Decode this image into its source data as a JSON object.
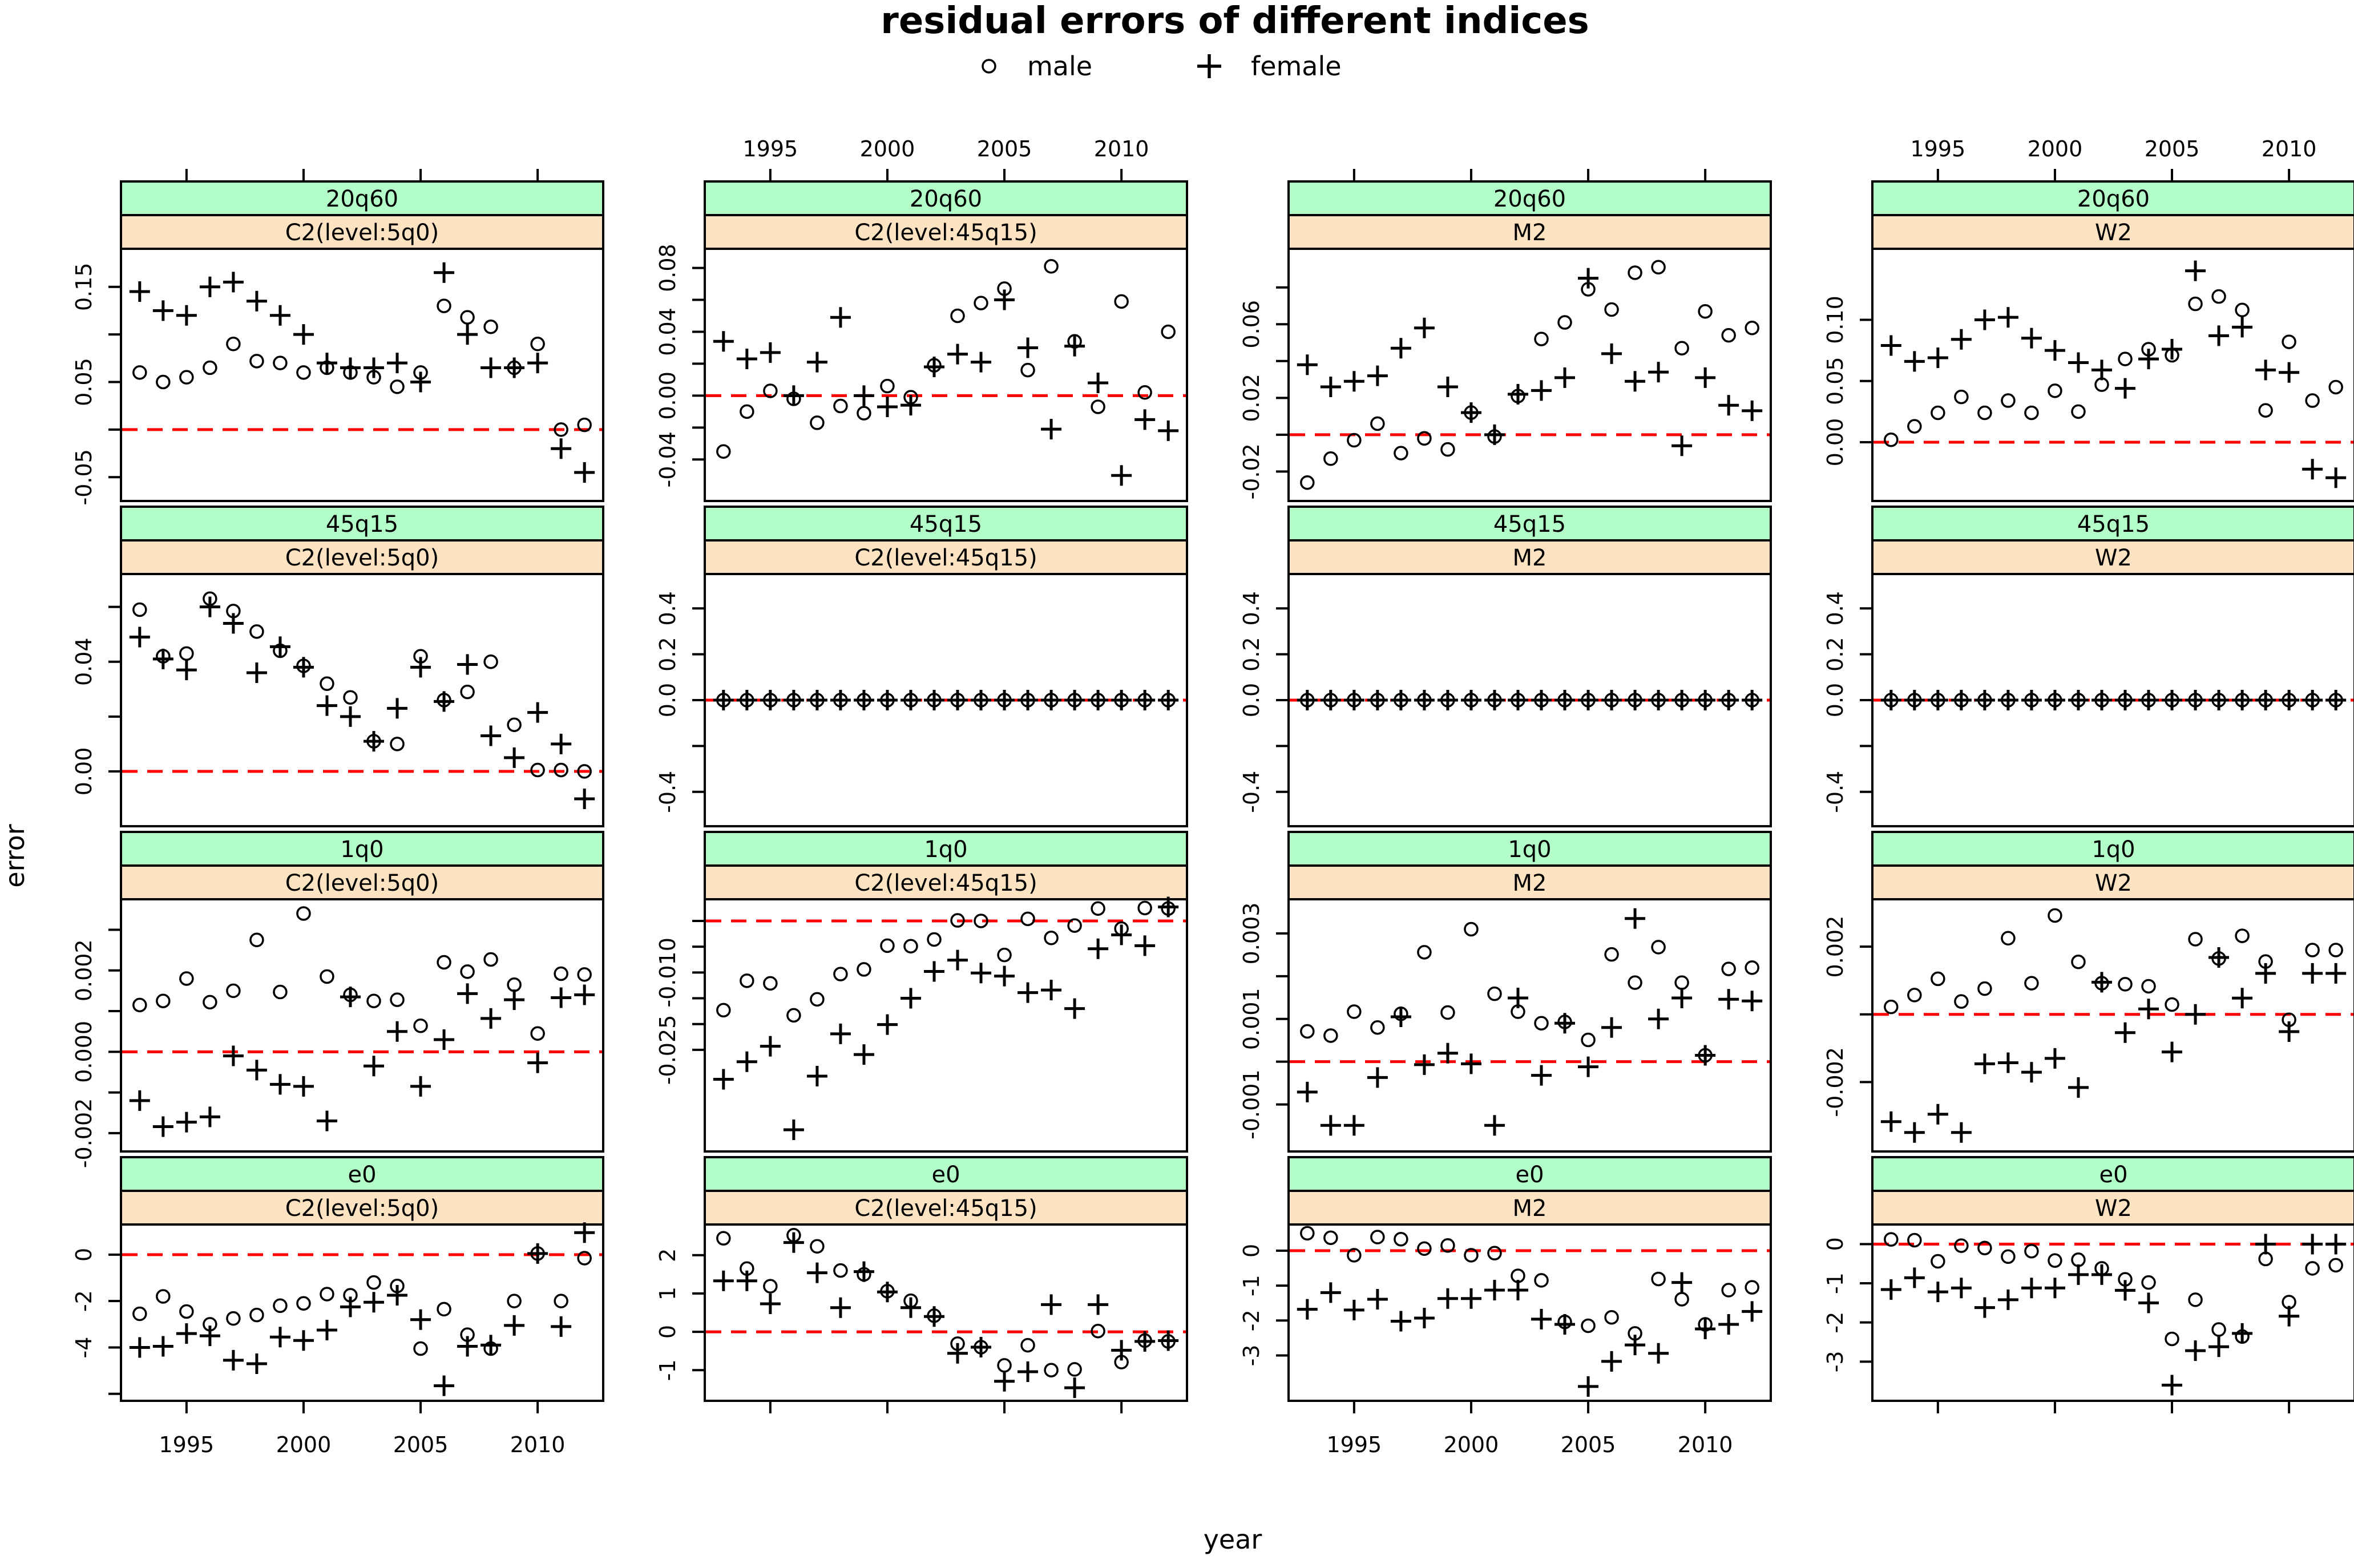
{
  "title": "residual errors of different indices",
  "legend": {
    "male_label": "male",
    "female_label": "female"
  },
  "axis": {
    "xlabel": "year",
    "ylabel": "error"
  },
  "colors": {
    "row_strip": "#b2fdc8",
    "col_strip": "#fee3c3",
    "zero_line": "#ff0000",
    "point": "#000000",
    "frame": "#000000"
  },
  "chart_data": {
    "type": "scatter",
    "description": "lattice of residual errors by index (rows) and model (columns), male=open circle, female=plus, red dashed zero line",
    "years": [
      1993,
      1994,
      1995,
      1996,
      1997,
      1998,
      1999,
      2000,
      2001,
      2002,
      2003,
      2004,
      2005,
      2006,
      2007,
      2008,
      2009,
      2010,
      2011,
      2012
    ],
    "xlim": [
      1992.2,
      2012.8
    ],
    "x_ticks": [
      1995,
      2000,
      2005,
      2010
    ],
    "rows": [
      "20q60",
      "45q15",
      "1q0",
      "e0"
    ],
    "cols": [
      "C2(level:5q0)",
      "C2(level:45q15)",
      "M2",
      "W2"
    ],
    "panels": [
      {
        "row": "20q60",
        "col": "C2(level:5q0)",
        "ylim": [
          -0.075,
          0.19
        ],
        "yticks": [
          0.15,
          0.1,
          0.05,
          0.0,
          -0.05
        ],
        "ylabels": [
          "0.15",
          "",
          "0.05",
          "",
          "-0.05"
        ],
        "male": [
          0.06,
          0.05,
          0.055,
          0.065,
          0.09,
          0.072,
          0.07,
          0.06,
          0.065,
          0.06,
          0.055,
          0.045,
          0.06,
          0.13,
          0.118,
          0.108,
          0.065,
          0.09,
          0.0,
          0.005
        ],
        "female": [
          0.145,
          0.125,
          0.12,
          0.15,
          0.155,
          0.135,
          0.12,
          0.1,
          0.07,
          0.065,
          0.065,
          0.07,
          0.05,
          0.165,
          0.1,
          0.065,
          0.065,
          0.07,
          -0.02,
          -0.045
        ]
      },
      {
        "row": "20q60",
        "col": "C2(level:45q15)",
        "ylim": [
          -0.066,
          0.092
        ],
        "yticks": [
          0.08,
          0.06,
          0.04,
          0.02,
          0.0,
          -0.02,
          -0.04
        ],
        "ylabels": [
          "0.08",
          "",
          "0.04",
          "",
          "0.00",
          "",
          "-0.04"
        ],
        "male": [
          -0.035,
          -0.01,
          0.003,
          -0.002,
          -0.017,
          -0.0065,
          -0.011,
          0.006,
          -0.001,
          0.019,
          0.05,
          0.058,
          0.067,
          0.016,
          0.081,
          0.034,
          -0.007,
          0.059,
          0.002,
          0.04
        ],
        "female": [
          0.034,
          0.023,
          0.027,
          0.0,
          0.021,
          0.049,
          0.0,
          -0.007,
          -0.006,
          0.018,
          0.026,
          0.021,
          0.06,
          0.03,
          -0.021,
          0.031,
          0.008,
          -0.05,
          -0.015,
          -0.022
        ]
      },
      {
        "row": "20q60",
        "col": "M2",
        "ylim": [
          -0.036,
          0.101
        ],
        "yticks": [
          0.08,
          0.06,
          0.04,
          0.02,
          0.0,
          -0.02
        ],
        "ylabels": [
          "",
          "0.06",
          "",
          "0.02",
          "",
          "-0.02"
        ],
        "male": [
          -0.026,
          -0.013,
          -0.003,
          0.006,
          -0.01,
          -0.002,
          -0.008,
          0.012,
          -0.001,
          0.021,
          0.052,
          0.061,
          0.079,
          0.068,
          0.088,
          0.091,
          0.047,
          0.067,
          0.054,
          0.058
        ],
        "female": [
          0.038,
          0.026,
          0.029,
          0.032,
          0.047,
          0.058,
          0.026,
          0.012,
          0.0,
          0.022,
          0.024,
          0.031,
          0.085,
          0.044,
          0.029,
          0.034,
          -0.006,
          0.031,
          0.016,
          0.013
        ]
      },
      {
        "row": "20q60",
        "col": "W2",
        "ylim": [
          -0.048,
          0.158
        ],
        "yticks": [
          0.1,
          0.05,
          0.0
        ],
        "ylabels": [
          "0.10",
          "0.05",
          "0.00"
        ],
        "male": [
          0.002,
          0.013,
          0.024,
          0.037,
          0.024,
          0.034,
          0.024,
          0.042,
          0.025,
          0.047,
          0.068,
          0.076,
          0.071,
          0.113,
          0.119,
          0.108,
          0.026,
          0.082,
          0.034,
          0.045
        ],
        "female": [
          0.079,
          0.066,
          0.069,
          0.084,
          0.1,
          0.102,
          0.085,
          0.075,
          0.065,
          0.059,
          0.044,
          0.068,
          0.076,
          0.14,
          0.087,
          0.094,
          0.059,
          0.057,
          -0.022,
          -0.029
        ]
      },
      {
        "row": "45q15",
        "col": "C2(level:5q0)",
        "ylim": [
          -0.02,
          0.072
        ],
        "yticks": [
          0.06,
          0.04,
          0.02,
          0.0
        ],
        "ylabels": [
          "",
          "0.04",
          "",
          "0.00"
        ],
        "male": [
          0.059,
          0.042,
          0.043,
          0.063,
          0.0585,
          0.051,
          0.044,
          0.0385,
          0.032,
          0.027,
          0.011,
          0.01,
          0.042,
          0.026,
          0.029,
          0.04,
          0.017,
          0.0005,
          0.0005,
          0.0
        ],
        "female": [
          0.049,
          0.041,
          0.037,
          0.06,
          0.054,
          0.036,
          0.0455,
          0.038,
          0.024,
          0.02,
          0.011,
          0.023,
          0.038,
          0.0255,
          0.039,
          0.013,
          0.005,
          0.0215,
          0.01,
          -0.01
        ]
      },
      {
        "row": "45q15",
        "col": "C2(level:45q15)",
        "ylim": [
          -0.55,
          0.55
        ],
        "yticks": [
          0.4,
          0.2,
          0.0,
          -0.2,
          -0.4
        ],
        "ylabels": [
          "0.4",
          "0.2",
          "0.0",
          "",
          "-0.4"
        ],
        "male": [
          0,
          0,
          0,
          0,
          0,
          0,
          0,
          0,
          0,
          0,
          0,
          0,
          0,
          0,
          0,
          0,
          0,
          0,
          0,
          0
        ],
        "female": [
          0,
          0,
          0,
          0,
          0,
          0,
          0,
          0,
          0,
          0,
          0,
          0,
          0,
          0,
          0,
          0,
          0,
          0,
          0,
          0
        ]
      },
      {
        "row": "45q15",
        "col": "M2",
        "ylim": [
          -0.55,
          0.55
        ],
        "yticks": [
          0.4,
          0.2,
          0.0,
          -0.2,
          -0.4
        ],
        "ylabels": [
          "0.4",
          "0.2",
          "0.0",
          "",
          "-0.4"
        ],
        "male": [
          0,
          0,
          0,
          0,
          0,
          0,
          0,
          0,
          0,
          0,
          0,
          0,
          0,
          0,
          0,
          0,
          0,
          0,
          0,
          0
        ],
        "female": [
          0,
          0,
          0,
          0,
          0,
          0,
          0,
          0,
          0,
          0,
          0,
          0,
          0,
          0,
          0,
          0,
          0,
          0,
          0,
          0
        ]
      },
      {
        "row": "45q15",
        "col": "W2",
        "ylim": [
          -0.55,
          0.55
        ],
        "yticks": [
          0.4,
          0.2,
          0.0,
          -0.2,
          -0.4
        ],
        "ylabels": [
          "0.4",
          "0.2",
          "0.0",
          "",
          "-0.4"
        ],
        "male": [
          0,
          0,
          0,
          0,
          0,
          0,
          0,
          0,
          0,
          0,
          0,
          0,
          0,
          0,
          0,
          0,
          0,
          0,
          0,
          0
        ],
        "female": [
          0,
          0,
          0,
          0,
          0,
          0,
          0,
          0,
          0,
          0,
          0,
          0,
          0,
          0,
          0,
          0,
          0,
          0,
          0,
          0
        ]
      },
      {
        "row": "1q0",
        "col": "C2(level:5q0)",
        "ylim": [
          -0.00245,
          0.00375
        ],
        "yticks": [
          0.003,
          0.002,
          0.001,
          0.0,
          -0.001,
          -0.002
        ],
        "ylabels": [
          "",
          "0.002",
          "",
          "0.000",
          "",
          "-0.002"
        ],
        "male": [
          0.00115,
          0.00125,
          0.0018,
          0.00122,
          0.0015,
          0.00275,
          0.00147,
          0.0034,
          0.00185,
          0.0014,
          0.00125,
          0.00128,
          0.00064,
          0.0022,
          0.00197,
          0.00227,
          0.00165,
          0.00045,
          0.00192,
          0.0019
        ],
        "female": [
          -0.0012,
          -0.00184,
          -0.00173,
          -0.0016,
          -0.0001,
          -0.00045,
          -0.0008,
          -0.00085,
          -0.0017,
          0.00135,
          -0.00035,
          0.0005,
          -0.00085,
          0.0003,
          0.00143,
          0.00082,
          0.00128,
          -0.00027,
          0.00133,
          0.0014
        ]
      },
      {
        "row": "1q0",
        "col": "C2(level:45q15)",
        "ylim": [
          -0.0447,
          0.0042
        ],
        "yticks": [
          0.0,
          -0.005,
          -0.01,
          -0.015,
          -0.02,
          -0.025
        ],
        "ylabels": [
          "",
          "",
          "-0.010",
          "",
          "",
          "-0.025"
        ],
        "male": [
          -0.0173,
          -0.0116,
          -0.0121,
          -0.0183,
          -0.0152,
          -0.0103,
          -0.0094,
          -0.0048,
          -0.0049,
          -0.0036,
          0.0001,
          0.0,
          -0.0066,
          0.0004,
          -0.0033,
          -0.0009,
          0.0024,
          -0.0015,
          0.0025,
          0.0024
        ],
        "female": [
          -0.0307,
          -0.0273,
          -0.0243,
          -0.0405,
          -0.0301,
          -0.0219,
          -0.0259,
          -0.0201,
          -0.015,
          -0.0098,
          -0.0076,
          -0.0101,
          -0.0107,
          -0.0139,
          -0.0134,
          -0.017,
          -0.0054,
          -0.0027,
          -0.0048,
          0.0027
        ]
      },
      {
        "row": "1q0",
        "col": "M2",
        "ylim": [
          -0.0021,
          0.0038
        ],
        "yticks": [
          0.003,
          0.002,
          0.001,
          0.0,
          -0.001
        ],
        "ylabels": [
          "0.003",
          "",
          "0.001",
          "",
          "-0.001"
        ],
        "male": [
          0.00071,
          0.00061,
          0.00117,
          0.0008,
          0.00112,
          0.00256,
          0.00115,
          0.0031,
          0.00159,
          0.00117,
          0.0009,
          0.00093,
          0.00051,
          0.00251,
          0.00185,
          0.00268,
          0.00185,
          0.00015,
          0.00217,
          0.0022
        ],
        "female": [
          -0.00071,
          -0.00149,
          -0.00149,
          -0.00037,
          0.00105,
          -7e-05,
          0.0002,
          -5e-05,
          -0.00149,
          0.00149,
          -0.00032,
          0.0009,
          -0.00012,
          0.0008,
          0.00335,
          0.001,
          0.00149,
          0.00015,
          0.00146,
          0.00142
        ]
      },
      {
        "row": "1q0",
        "col": "W2",
        "ylim": [
          -0.00405,
          0.0034
        ],
        "yticks": [
          0.002,
          0.0,
          -0.002
        ],
        "ylabels": [
          "0.002",
          "",
          "-0.002"
        ],
        "male": [
          0.00022,
          0.00057,
          0.00105,
          0.00038,
          0.00076,
          0.00225,
          0.00092,
          0.00292,
          0.00155,
          0.00092,
          0.00089,
          0.00083,
          0.00029,
          0.00222,
          0.00165,
          0.00232,
          0.00156,
          -0.00016,
          0.0019,
          0.0019
        ],
        "female": [
          -0.00317,
          -0.00349,
          -0.00295,
          -0.00349,
          -0.00146,
          -0.00143,
          -0.00171,
          -0.0013,
          -0.00216,
          0.00095,
          -0.00054,
          0.00016,
          -0.00111,
          0.0,
          0.00168,
          0.00048,
          0.00121,
          -0.00051,
          0.00121,
          0.00121
        ]
      },
      {
        "row": "e0",
        "col": "C2(level:5q0)",
        "ylim": [
          -6.3,
          1.3
        ],
        "yticks": [
          0,
          -2,
          -4,
          -6
        ],
        "ylabels": [
          "0",
          "-2",
          "-4",
          ""
        ],
        "male": [
          -2.55,
          -1.8,
          -2.45,
          -3.0,
          -2.75,
          -2.6,
          -2.2,
          -2.1,
          -1.7,
          -1.75,
          -1.2,
          -1.35,
          -4.05,
          -2.35,
          -3.45,
          -4.05,
          -2.0,
          0.05,
          -2.0,
          -0.15
        ],
        "female": [
          -4.0,
          -3.95,
          -3.4,
          -3.5,
          -4.55,
          -4.7,
          -3.55,
          -3.7,
          -3.25,
          -2.25,
          -2.05,
          -1.75,
          -2.8,
          -5.65,
          -3.95,
          -3.9,
          -3.05,
          0.05,
          -3.1,
          0.95
        ]
      },
      {
        "row": "e0",
        "col": "C2(level:45q15)",
        "ylim": [
          -1.8,
          2.8
        ],
        "yticks": [
          2,
          1,
          0,
          -1
        ],
        "ylabels": [
          "2",
          "1",
          "0",
          "-1"
        ],
        "male": [
          2.44,
          1.65,
          1.19,
          2.52,
          2.23,
          1.6,
          1.5,
          1.06,
          0.81,
          0.42,
          -0.31,
          -0.4,
          -0.875,
          -0.35,
          -1.0,
          -0.98,
          0.02,
          -0.79,
          -0.23,
          -0.25
        ],
        "female": [
          1.33,
          1.33,
          0.73,
          2.33,
          1.54,
          0.63,
          1.57,
          1.04,
          0.63,
          0.4,
          -0.56,
          -0.4,
          -1.29,
          -1.04,
          0.71,
          -1.46,
          0.71,
          -0.48,
          -0.25,
          -0.23
        ]
      },
      {
        "row": "e0",
        "col": "M2",
        "ylim": [
          -4.3,
          0.75
        ],
        "yticks": [
          0,
          -1,
          -2,
          -3
        ],
        "ylabels": [
          "0",
          "-1",
          "-2",
          "-3"
        ],
        "male": [
          0.5,
          0.37,
          -0.13,
          0.39,
          0.33,
          0.06,
          0.15,
          -0.13,
          -0.07,
          -0.72,
          -0.85,
          -2.04,
          -2.15,
          -1.91,
          -2.37,
          -0.81,
          -1.39,
          -2.11,
          -1.13,
          -1.05
        ],
        "female": [
          -1.68,
          -1.2,
          -1.7,
          -1.39,
          -2.02,
          -1.93,
          -1.37,
          -1.37,
          -1.13,
          -1.13,
          -1.96,
          -2.11,
          -3.89,
          -3.17,
          -2.7,
          -2.94,
          -0.91,
          -2.24,
          -2.11,
          -1.74
        ]
      },
      {
        "row": "e0",
        "col": "W2",
        "ylim": [
          -4.0,
          0.5
        ],
        "yticks": [
          0,
          -1,
          -2,
          -3
        ],
        "ylabels": [
          "0",
          "-1",
          "-2",
          "-3"
        ],
        "male": [
          0.12,
          0.1,
          -0.44,
          -0.04,
          -0.1,
          -0.32,
          -0.18,
          -0.42,
          -0.4,
          -0.62,
          -0.9,
          -0.98,
          -2.42,
          -1.42,
          -2.18,
          -2.36,
          -0.38,
          -1.48,
          -0.62,
          -0.54
        ],
        "female": [
          -1.16,
          -0.86,
          -1.22,
          -1.12,
          -1.62,
          -1.42,
          -1.12,
          -1.12,
          -0.78,
          -0.78,
          -1.18,
          -1.5,
          -3.6,
          -2.72,
          -2.62,
          -2.28,
          0.0,
          -1.84,
          0.0,
          0.0
        ]
      }
    ]
  }
}
